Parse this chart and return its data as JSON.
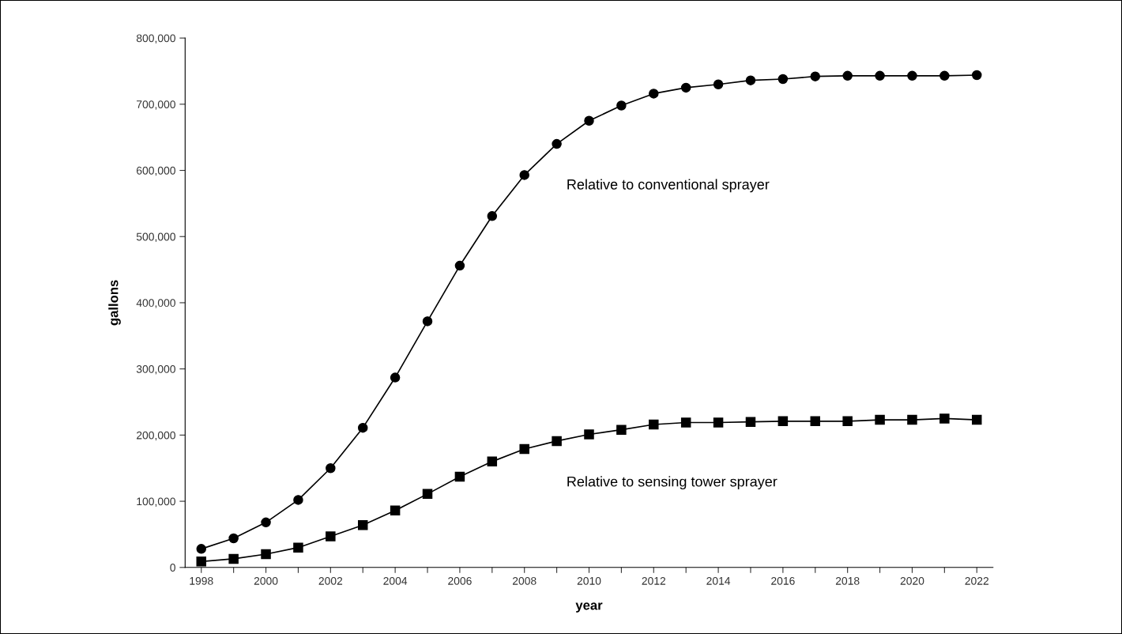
{
  "chart_data": {
    "type": "line",
    "xlabel": "year",
    "ylabel": "gallons",
    "categories": [
      "1998",
      null,
      "2000",
      null,
      "2002",
      null,
      "2004",
      null,
      "2006",
      null,
      "2008",
      null,
      "2010",
      null,
      "2012",
      null,
      "2014",
      null,
      "2016",
      null,
      "2018",
      null,
      "2020",
      null,
      "2022"
    ],
    "series": [
      {
        "name": "Relative to conventional sprayer",
        "color": "#000000",
        "marker": "circle",
        "values": [
          28000,
          44000,
          68000,
          102000,
          150000,
          211000,
          287000,
          372000,
          456000,
          531000,
          593000,
          640000,
          675000,
          698000,
          716000,
          725000,
          730000,
          736000,
          738000,
          742000,
          743000,
          743000,
          743000,
          743000,
          744000
        ]
      },
      {
        "name": "Relative to sensing tower sprayer",
        "color": "#000000",
        "marker": "square",
        "values": [
          9000,
          13000,
          20000,
          30000,
          47000,
          64000,
          86000,
          111000,
          137000,
          160000,
          179000,
          191000,
          201000,
          208000,
          216000,
          219000,
          219000,
          220000,
          221000,
          221000,
          221000,
          223000,
          223000,
          225000,
          223000
        ]
      }
    ],
    "ylim": [
      0,
      800000
    ],
    "yticks": [
      {
        "value": 0,
        "label": "0"
      },
      {
        "value": 100000,
        "label": "100,000"
      },
      {
        "value": 200000,
        "label": "200,000"
      },
      {
        "value": 300000,
        "label": "300,000"
      },
      {
        "value": 400000,
        "label": "400,000"
      },
      {
        "value": 500000,
        "label": "500,000"
      },
      {
        "value": 600000,
        "label": "600,000"
      },
      {
        "value": 700000,
        "label": "700,000"
      },
      {
        "value": 800000,
        "label": "800,000"
      }
    ],
    "grid": false,
    "legend": false,
    "line_style": "solid"
  }
}
